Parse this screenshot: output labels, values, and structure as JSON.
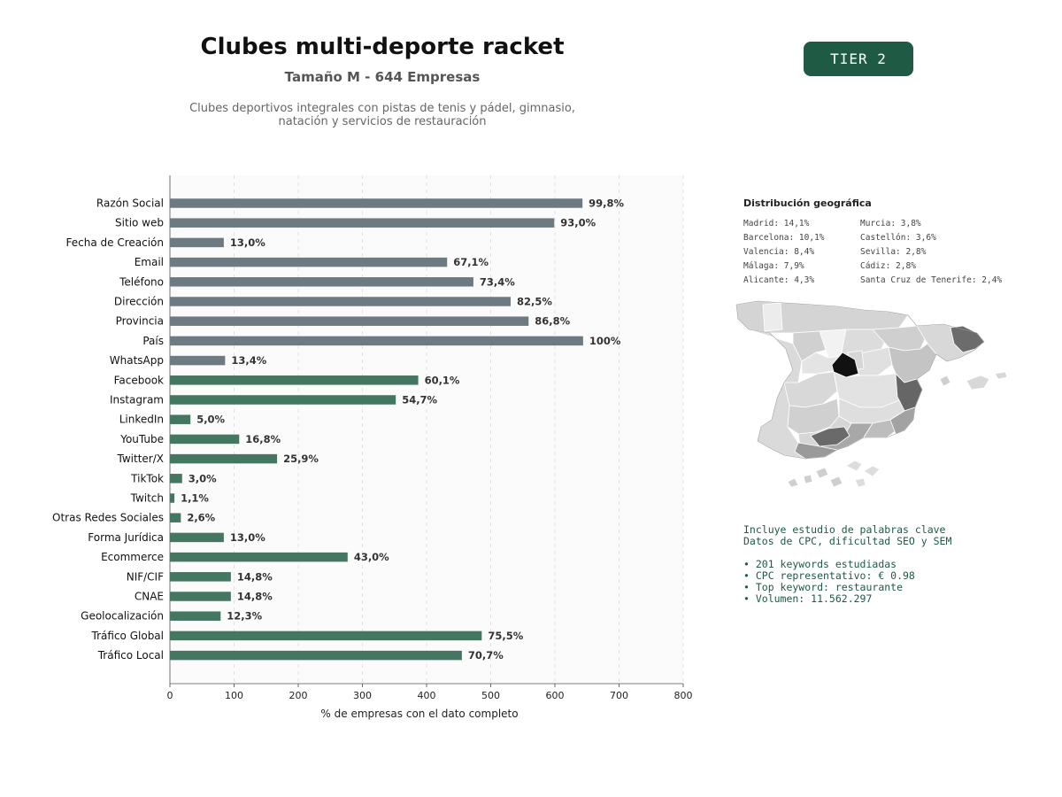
{
  "header": {
    "title": "Clubes multi-deporte racket",
    "subtitle": "Tamaño M - 644 Empresas",
    "description_line1": "Clubes deportivos integrales con pistas de tenis y pádel, gimnasio,",
    "description_line2": "natación y servicios de restauración",
    "tier_badge": "TIER 2"
  },
  "colors": {
    "gray_bar": "#6e7a82",
    "green_bar": "#447662",
    "accent": "#1e5a44"
  },
  "chart_data": {
    "type": "bar",
    "orientation": "horizontal",
    "xlabel": "% de empresas con el dato completo",
    "xlim": [
      0,
      800
    ],
    "xticks": [
      0,
      100,
      200,
      300,
      400,
      500,
      600,
      700,
      800
    ],
    "grid": "vertical dashed",
    "categories": [
      "Razón Social",
      "Sitio web",
      "Fecha de Creación",
      "Email",
      "Teléfono",
      "Dirección",
      "Provincia",
      "País",
      "WhatsApp",
      "Facebook",
      "Instagram",
      "LinkedIn",
      "YouTube",
      "Twitter/X",
      "TikTok",
      "Twitch",
      "Otras Redes Sociales",
      "Forma Jurídica",
      "Ecommerce",
      "NIF/CIF",
      "CNAE",
      "Geolocalización",
      "Tráfico Global",
      "Tráfico Local"
    ],
    "values": [
      643,
      599,
      84,
      432,
      473,
      531,
      559,
      644,
      86,
      387,
      352,
      32,
      108,
      167,
      19,
      7,
      17,
      84,
      277,
      95,
      95,
      79,
      486,
      455
    ],
    "labels": [
      "99,8%",
      "93,0%",
      "13,0%",
      "67,1%",
      "73,4%",
      "82,5%",
      "86,8%",
      "100%",
      "13,4%",
      "60,1%",
      "54,7%",
      "5,0%",
      "16,8%",
      "25,9%",
      "3,0%",
      "1,1%",
      "2,6%",
      "13,0%",
      "43,0%",
      "14,8%",
      "14,8%",
      "12,3%",
      "75,5%",
      "70,7%"
    ],
    "colors": [
      "gray",
      "gray",
      "gray",
      "gray",
      "gray",
      "gray",
      "gray",
      "gray",
      "gray",
      "green",
      "green",
      "green",
      "green",
      "green",
      "green",
      "green",
      "green",
      "green",
      "green",
      "green",
      "green",
      "green",
      "green",
      "green"
    ]
  },
  "geo": {
    "title": "Distribución geográfica",
    "left": [
      "Madrid: 14,1%",
      "Barcelona: 10,1%",
      "Valencia: 8,4%",
      "Málaga: 7,9%",
      "Alicante: 4,3%"
    ],
    "right": [
      "Murcia: 3,8%",
      "Castellón: 3,6%",
      "Sevilla: 2,8%",
      "Cádiz: 2,8%",
      "Santa Cruz de Tenerife: 2,4%"
    ]
  },
  "keywords": {
    "line1": "Incluye estudio de palabras clave",
    "line2": "Datos de CPC, dificultad SEO y SEM",
    "bullets": [
      "• 201 keywords estudiadas",
      "• CPC representativo: € 0.98",
      "• Top keyword: restaurante",
      "• Volumen: 11.562.297"
    ]
  }
}
